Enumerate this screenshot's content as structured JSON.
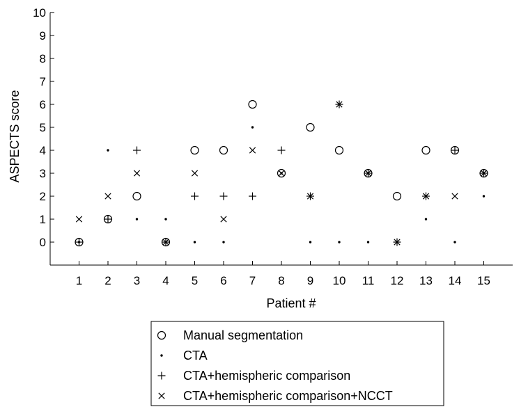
{
  "chart_data": {
    "type": "scatter",
    "xlabel": "Patient #",
    "ylabel": "ASPECTS score",
    "x": [
      1,
      2,
      3,
      4,
      5,
      6,
      7,
      8,
      9,
      10,
      11,
      12,
      13,
      14,
      15
    ],
    "x_ticks": [
      "1",
      "2",
      "3",
      "4",
      "5",
      "6",
      "7",
      "8",
      "9",
      "10",
      "11",
      "12",
      "13",
      "14",
      "15"
    ],
    "y_ticks": [
      "0",
      "1",
      "2",
      "3",
      "4",
      "5",
      "6",
      "7",
      "8",
      "9",
      "10"
    ],
    "xlim": [
      0,
      16
    ],
    "ylim": [
      -1,
      10
    ],
    "grid": false,
    "legend_position": "bottom-center",
    "series": [
      {
        "name": "Manual segmentation",
        "marker": "circle",
        "values": [
          0,
          1,
          2,
          0,
          4,
          4,
          6,
          3,
          5,
          4,
          3,
          2,
          4,
          4,
          3
        ]
      },
      {
        "name": "CTA",
        "marker": "dot",
        "values": [
          0,
          4,
          1,
          1,
          0,
          0,
          5,
          3,
          0,
          0,
          0,
          0,
          1,
          0,
          2
        ]
      },
      {
        "name": "CTA+hemispheric comparison",
        "marker": "plus",
        "values": [
          0,
          1,
          4,
          0,
          2,
          2,
          2,
          4,
          2,
          6,
          3,
          0,
          2,
          4,
          3
        ]
      },
      {
        "name": "CTA+hemispheric comparison+NCCT",
        "marker": "cross",
        "values": [
          1,
          2,
          3,
          0,
          3,
          1,
          4,
          3,
          2,
          6,
          3,
          0,
          2,
          2,
          3
        ]
      }
    ]
  }
}
